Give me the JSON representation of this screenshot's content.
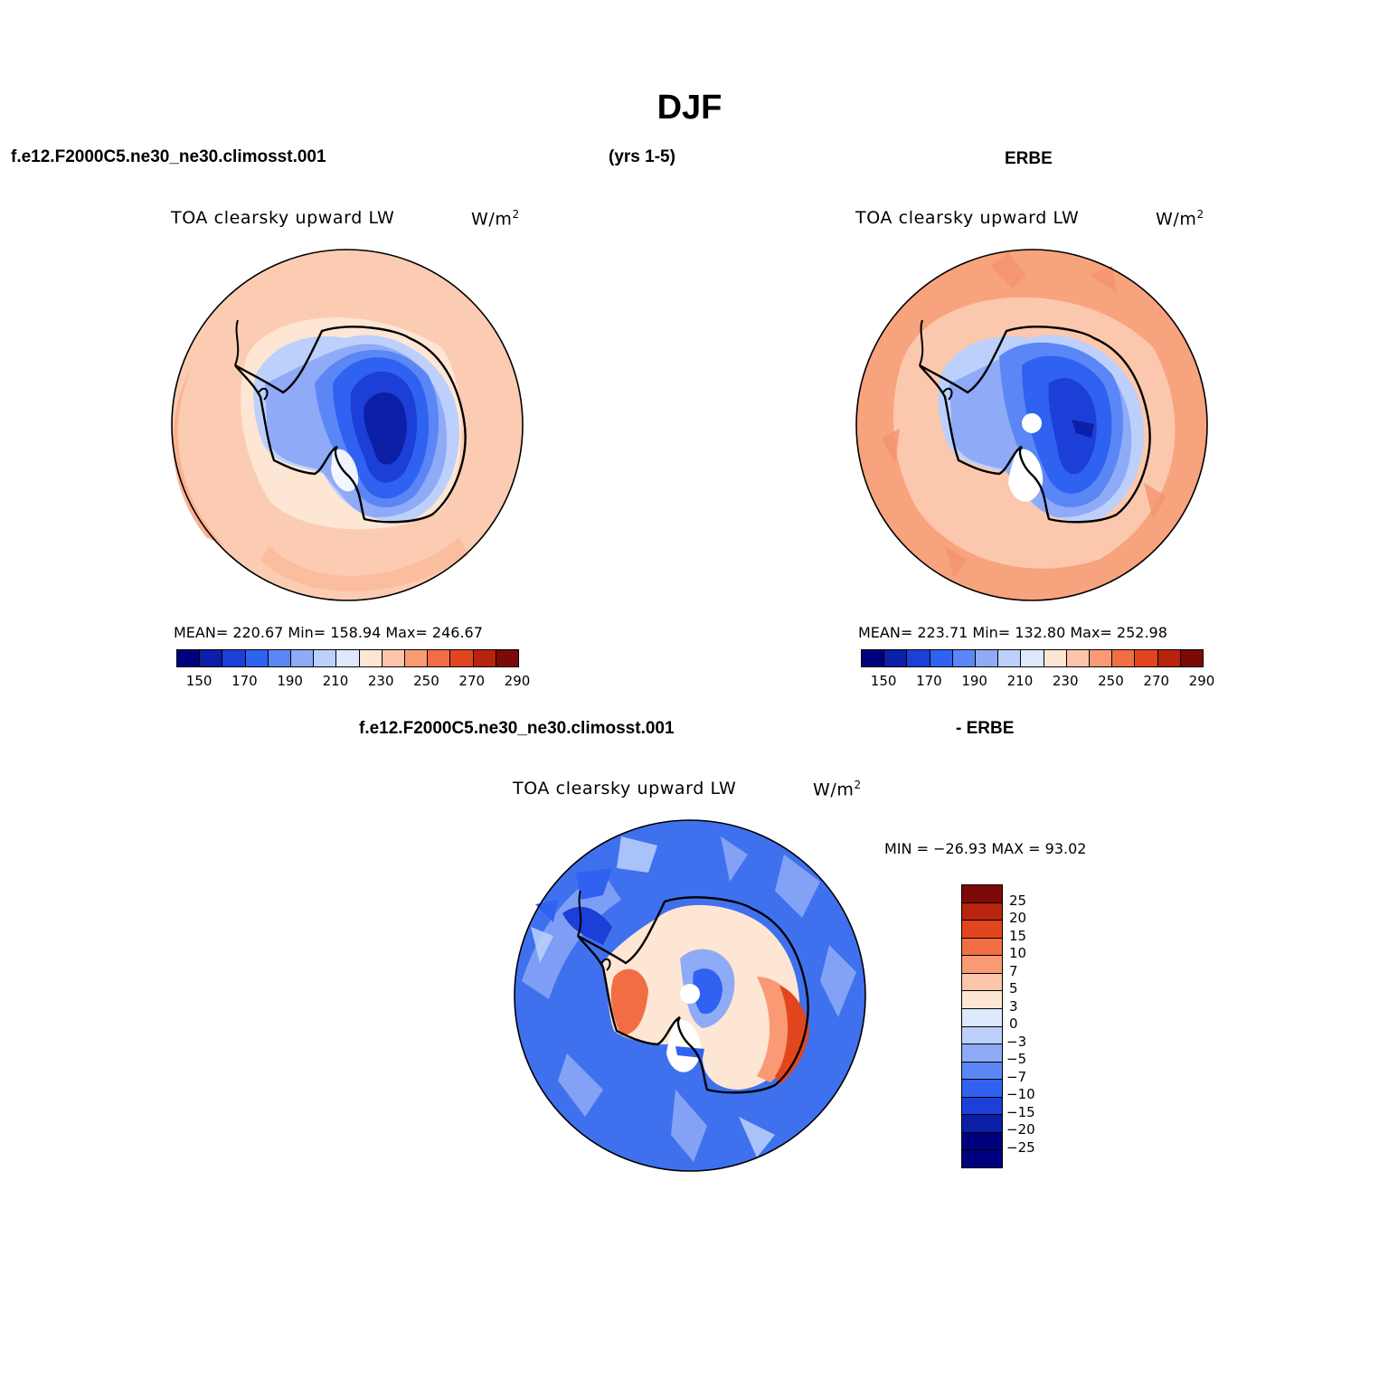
{
  "main_title": "DJF",
  "top_left_case": "f.e12.F2000C5.ne30_ne30.climosst.001",
  "top_years": "(yrs 1-5)",
  "top_right_case": "ERBE",
  "bottom_case": "f.e12.F2000C5.ne30_ne30.climosst.001",
  "bottom_suffix": "- ERBE",
  "panels": [
    {
      "variable": "TOA clearsky upward LW",
      "units_base": "W/m",
      "units_exp": "2",
      "stats": "MEAN= 220.67   Min= 158.94   Max= 246.67"
    },
    {
      "variable": "TOA clearsky upward LW",
      "units_base": "W/m",
      "units_exp": "2",
      "stats": "MEAN= 223.71   Min= 132.80   Max= 252.98"
    },
    {
      "variable": "TOA clearsky upward LW",
      "units_base": "W/m",
      "units_exp": "2",
      "stats": "MIN = −26.93 MAX =  93.02"
    }
  ],
  "colorbar_top": {
    "ticks": [
      "150",
      "170",
      "190",
      "210",
      "230",
      "250",
      "270",
      "290"
    ],
    "colors": [
      "#00007f",
      "#0c1fa6",
      "#1c3fd8",
      "#2f62f0",
      "#5b86f6",
      "#8faaf7",
      "#bcd0fb",
      "#dde9fc",
      "#fde6d4",
      "#fcc4aa",
      "#f99a75",
      "#f16e44",
      "#e1461f",
      "#b8240d",
      "#7c0a06"
    ]
  },
  "colorbar_diff": {
    "ticks": [
      "25",
      "20",
      "15",
      "10",
      "7",
      "5",
      "3",
      "0",
      "−3",
      "−5",
      "−7",
      "−10",
      "−15",
      "−20",
      "−25"
    ],
    "colors": [
      "#7c0a06",
      "#b8240d",
      "#e1461f",
      "#f16e44",
      "#f99a75",
      "#fcc4aa",
      "#fde6d4",
      "#dde9fc",
      "#bcd0fb",
      "#8faaf7",
      "#5b86f6",
      "#2f62f0",
      "#1c3fd8",
      "#0c1fa6",
      "#00007f",
      "#00007f"
    ]
  },
  "palette": {
    "ocean_model": "#fcccb2",
    "ocean_obs": "#f7a37e",
    "ice_high": "#2f62f0",
    "ice_core": "#1c3fd8",
    "diff_ocean": "#3f71ee"
  }
}
